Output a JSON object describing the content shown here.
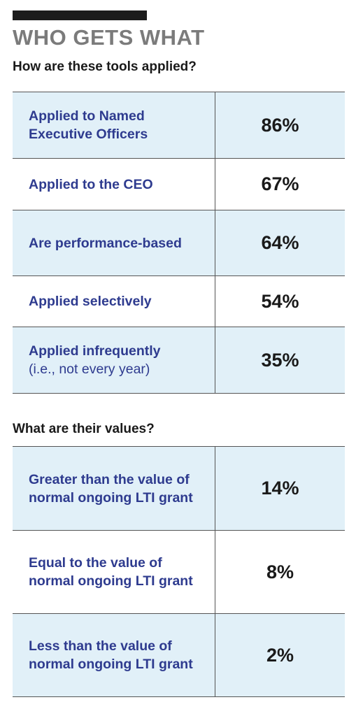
{
  "header": {
    "title": "WHO GETS WHAT",
    "subtitle": "How are these tools applied?"
  },
  "section1": {
    "rows": [
      {
        "label": "Applied to Named Executive Officers",
        "note": "",
        "value": "86%"
      },
      {
        "label": "Applied to the CEO",
        "note": "",
        "value": "67%"
      },
      {
        "label": "Are performance-based",
        "note": "",
        "value": "64%"
      },
      {
        "label": "Applied selectively",
        "note": "",
        "value": "54%"
      },
      {
        "label": "Applied infrequently",
        "note": "(i.e., not every year)",
        "value": "35%"
      }
    ]
  },
  "section2": {
    "heading": "What are their values?",
    "rows": [
      {
        "label": "Greater than the value of normal ongoing LTI grant",
        "value": "14%"
      },
      {
        "label": "Equal to the value of normal ongoing LTI grant",
        "value": "8%"
      },
      {
        "label": "Less than the value of normal ongoing LTI grant",
        "value": "2%"
      }
    ]
  },
  "colors": {
    "shade": "#e1f0f8",
    "label": "#2e3b8f",
    "title": "#7b7b7b"
  }
}
